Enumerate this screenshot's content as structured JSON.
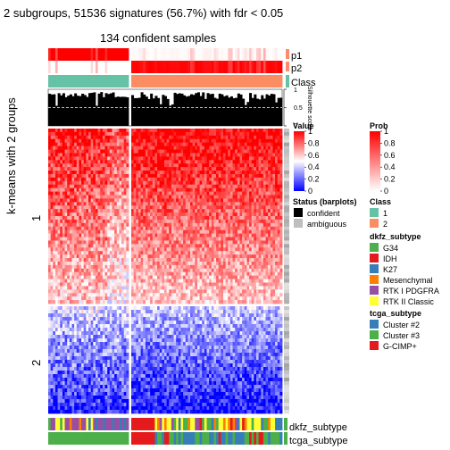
{
  "header": {
    "title": "2 subgroups, 51536 signatures (56.7%) with fdr < 0.05",
    "subtitle": "134 confident samples"
  },
  "annotations": {
    "p1": "p1",
    "p2": "p2",
    "class": "Class",
    "silhouette": "Silhouette score",
    "silhouette_ticks": [
      "1",
      "0.5",
      "0"
    ],
    "dkfz": "dkfz_subtype",
    "tcga": "tcga_subtype"
  },
  "chart_data": {
    "type": "heatmap",
    "ylabel": "k-means with 2 groups",
    "row_groups": [
      "1",
      "2"
    ],
    "column_groups": [
      "1",
      "2"
    ],
    "value_range": [
      0,
      1
    ]
  },
  "legends": {
    "value": {
      "title": "Value",
      "ticks": [
        "1",
        "0.8",
        "0.6",
        "0.4",
        "0.2",
        "0"
      ]
    },
    "prob": {
      "title": "Prob",
      "ticks": [
        "1",
        "0.8",
        "0.6",
        "0.4",
        "0.2",
        "0"
      ]
    },
    "status": {
      "title": "Status (barplots)",
      "items": [
        "confident",
        "ambiguous"
      ]
    },
    "class": {
      "title": "Class",
      "items": [
        "1",
        "2"
      ]
    },
    "dkfz_subtype": {
      "title": "dkfz_subtype",
      "items": [
        "G34",
        "IDH",
        "K27",
        "Mesenchymal",
        "RTK I PDGFRA",
        "RTK II Classic"
      ]
    },
    "tcga_subtype": {
      "title": "tcga_subtype",
      "items": [
        "Cluster #2",
        "Cluster #3",
        "G-CIMP+"
      ]
    }
  },
  "colors": {
    "class1": "#66C2A5",
    "class2": "#FC8D62",
    "g34": "#4DAF4A",
    "idh": "#E41A1C",
    "k27": "#377EB8",
    "mesenchymal": "#FF7F00",
    "rtk1": "#984EA3",
    "rtk2": "#FFFF33",
    "cluster2": "#377EB8",
    "cluster3": "#4DAF4A",
    "gcimp": "#E41A1C"
  }
}
